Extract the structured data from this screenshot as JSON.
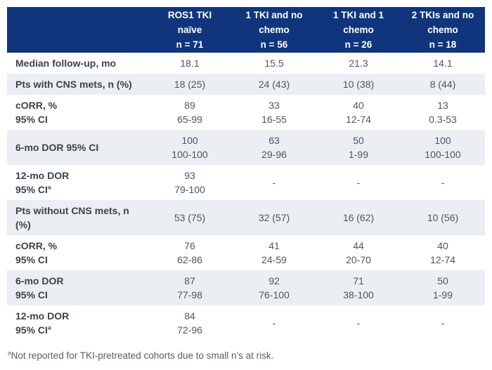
{
  "colors": {
    "header_bg": "#10357d",
    "header_text": "#ffffff",
    "stripe": "#ebeef2",
    "label_text": "#3c434b",
    "value_text": "#4d565e",
    "footnote_text": "#575e66"
  },
  "table": {
    "corner_label": "",
    "columns": [
      {
        "lines": [
          "ROS1 TKI",
          "naïve",
          "n = 71"
        ]
      },
      {
        "lines": [
          "1 TKI and no",
          "chemo",
          "n = 56"
        ]
      },
      {
        "lines": [
          "1 TKI and 1",
          "chemo",
          "n = 26"
        ]
      },
      {
        "lines": [
          "2 TKIs and no",
          "chemo",
          "n = 18"
        ]
      }
    ],
    "rows": [
      {
        "label_lines": [
          "Median follow-up, mo"
        ],
        "values": [
          [
            "18.1"
          ],
          [
            "15.5"
          ],
          [
            "21.3"
          ],
          [
            "14.1"
          ]
        ]
      },
      {
        "label_lines": [
          "Pts with CNS mets, n (%)"
        ],
        "values": [
          [
            "18 (25)"
          ],
          [
            "24 (43)"
          ],
          [
            "10 (38)"
          ],
          [
            "8 (44)"
          ]
        ]
      },
      {
        "label_lines": [
          "cORR, %",
          "95% CI"
        ],
        "values": [
          [
            "89",
            "65-99"
          ],
          [
            "33",
            "16-55"
          ],
          [
            "40",
            "12-74"
          ],
          [
            "13",
            "0.3-53"
          ]
        ]
      },
      {
        "label_lines": [
          "6-mo DOR 95% CI"
        ],
        "values": [
          [
            "100",
            "100-100"
          ],
          [
            "63",
            "29-96"
          ],
          [
            "50",
            "1-99"
          ],
          [
            "100",
            "100-100"
          ]
        ]
      },
      {
        "label_lines": [
          "12-mo DOR",
          "95% CI"
        ],
        "label_sup": "a",
        "values": [
          [
            "93",
            "79-100"
          ],
          [
            "-"
          ],
          [
            "-"
          ],
          [
            "-"
          ]
        ]
      },
      {
        "label_lines": [
          "Pts without CNS mets, n (%)"
        ],
        "values": [
          [
            "53 (75)"
          ],
          [
            "32 (57)"
          ],
          [
            "16 (62)"
          ],
          [
            "10 (56)"
          ]
        ]
      },
      {
        "label_lines": [
          "cORR, %",
          "95% CI"
        ],
        "values": [
          [
            "76",
            "62-86"
          ],
          [
            "41",
            "24-59"
          ],
          [
            "44",
            "20-70"
          ],
          [
            "40",
            "12-74"
          ]
        ]
      },
      {
        "label_lines": [
          "6-mo DOR",
          "95% CI"
        ],
        "values": [
          [
            "87",
            "77-98"
          ],
          [
            "92",
            "76-100"
          ],
          [
            "71",
            "38-100"
          ],
          [
            "50",
            "1-99"
          ]
        ]
      },
      {
        "label_lines": [
          "12-mo DOR",
          "95% CI"
        ],
        "label_sup": "a",
        "values": [
          [
            "84",
            "72-96"
          ],
          [
            "-"
          ],
          [
            "-"
          ],
          [
            "-"
          ]
        ]
      }
    ]
  },
  "footnote": {
    "sup": "a",
    "text": "Not reported for TKI-pretreated cohorts due to small n's at risk."
  },
  "chart_data": {
    "type": "table",
    "title": "",
    "columns": [
      "",
      "ROS1 TKI naïve (n = 71)",
      "1 TKI and no chemo (n = 56)",
      "1 TKI and 1 chemo (n = 26)",
      "2 TKIs and no chemo (n = 18)"
    ],
    "rows": [
      [
        "Median follow-up, mo",
        "18.1",
        "15.5",
        "21.3",
        "14.1"
      ],
      [
        "Pts with CNS mets, n (%)",
        "18 (25)",
        "24 (43)",
        "10 (38)",
        "8 (44)"
      ],
      [
        "cORR, % (95% CI)",
        "89 (65-99)",
        "33 (16-55)",
        "40 (12-74)",
        "13 (0.3-53)"
      ],
      [
        "6-mo DOR, 95% CI",
        "100 (100-100)",
        "63 (29-96)",
        "50 (1-99)",
        "100 (100-100)"
      ],
      [
        "12-mo DOR, 95% CI(a)",
        "93 (79-100)",
        "-",
        "-",
        "-"
      ],
      [
        "Pts without CNS mets, n (%)",
        "53 (75)",
        "32 (57)",
        "16 (62)",
        "10 (56)"
      ],
      [
        "cORR, % (95% CI)",
        "76 (62-86)",
        "41 (24-59)",
        "44 (20-70)",
        "40 (12-74)"
      ],
      [
        "6-mo DOR, 95% CI",
        "87 (77-98)",
        "92 (76-100)",
        "71 (38-100)",
        "50 (1-99)"
      ],
      [
        "12-mo DOR, 95% CI(a)",
        "84 (72-96)",
        "-",
        "-",
        "-"
      ]
    ],
    "footnote": "(a) Not reported for TKI-pretreated cohorts due to small n's at risk.",
    "layout": {
      "header_background": "#10357d",
      "zebra_striping": true,
      "stripe_color": "#ebeef2"
    }
  }
}
